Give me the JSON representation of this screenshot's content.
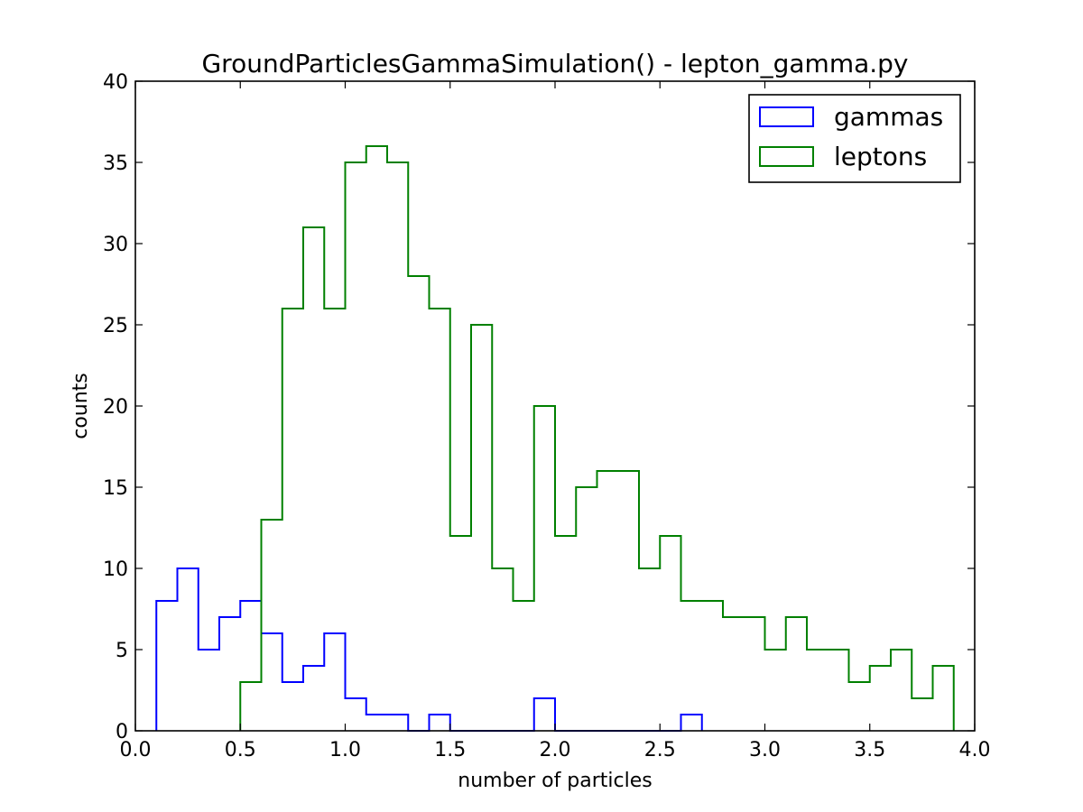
{
  "chart_data": {
    "type": "histogram",
    "title": "GroundParticlesGammaSimulation() - lepton_gamma.py",
    "xlabel": "number of particles",
    "ylabel": "counts",
    "xlim": [
      0.0,
      4.0
    ],
    "ylim": [
      0,
      40
    ],
    "xticks": [
      "0.0",
      "0.5",
      "1.0",
      "1.5",
      "2.0",
      "2.5",
      "3.0",
      "3.5",
      "4.0"
    ],
    "yticks": [
      "0",
      "5",
      "10",
      "15",
      "20",
      "25",
      "30",
      "35",
      "40"
    ],
    "grid": false,
    "legend_position": "top-right",
    "series": [
      {
        "name": "gammas",
        "color": "#0000ff",
        "bin_edges": [
          0.1,
          0.2,
          0.3,
          0.4,
          0.5,
          0.6,
          0.7,
          0.8,
          0.9,
          1.0,
          1.1,
          1.2,
          1.3,
          1.4,
          1.5,
          1.6,
          1.7,
          1.8,
          1.9,
          2.0,
          2.1,
          2.2,
          2.3,
          2.4,
          2.5,
          2.6,
          2.7
        ],
        "counts": [
          8,
          10,
          5,
          7,
          8,
          6,
          3,
          4,
          6,
          2,
          1,
          1,
          0,
          1,
          0,
          0,
          0,
          0,
          2,
          0,
          0,
          0,
          0,
          0,
          0,
          1
        ]
      },
      {
        "name": "leptons",
        "color": "#008000",
        "bin_edges": [
          0.5,
          0.6,
          0.7,
          0.8,
          0.9,
          1.0,
          1.1,
          1.2,
          1.3,
          1.4,
          1.5,
          1.6,
          1.7,
          1.8,
          1.9,
          2.0,
          2.1,
          2.2,
          2.3,
          2.4,
          2.5,
          2.6,
          2.7,
          2.8,
          2.9,
          3.0,
          3.1,
          3.2,
          3.3,
          3.4,
          3.5,
          3.6,
          3.7,
          3.8,
          3.9
        ],
        "counts": [
          3,
          13,
          26,
          31,
          26,
          35,
          36,
          35,
          28,
          26,
          12,
          25,
          10,
          8,
          20,
          12,
          15,
          16,
          16,
          10,
          12,
          8,
          8,
          7,
          7,
          5,
          7,
          5,
          5,
          3,
          4,
          5,
          2,
          4
        ]
      }
    ]
  }
}
